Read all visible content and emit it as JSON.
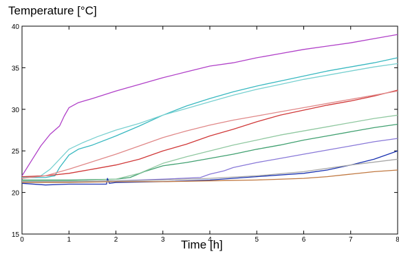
{
  "chart_data": {
    "type": "line",
    "ylabel": "Temperature [°C]",
    "xlabel": "Time [h]",
    "xlim": [
      0,
      8
    ],
    "ylim": [
      15,
      40
    ],
    "xticks": [
      0,
      1,
      2,
      3,
      4,
      5,
      6,
      7,
      8
    ],
    "yticks": [
      15,
      20,
      25,
      30,
      35,
      40
    ],
    "grid": false,
    "legend": "none",
    "series": [
      {
        "color": "#b040c8",
        "x": [
          0,
          0.2,
          0.4,
          0.6,
          0.8,
          0.9,
          1.0,
          1.2,
          1.5,
          2,
          2.5,
          3,
          3.5,
          4,
          4.5,
          5,
          5.5,
          6,
          6.5,
          7,
          7.5,
          8
        ],
        "y": [
          22.0,
          23.8,
          25.6,
          27.0,
          28.0,
          29.2,
          30.2,
          30.8,
          31.3,
          32.2,
          33.0,
          33.8,
          34.5,
          35.2,
          35.6,
          36.2,
          36.7,
          37.2,
          37.6,
          38.0,
          38.5,
          39.0
        ]
      },
      {
        "color": "#38b8c0",
        "x": [
          0,
          0.5,
          0.7,
          0.8,
          1.0,
          1.2,
          1.5,
          2,
          2.5,
          3,
          3.5,
          4,
          4.5,
          5,
          5.5,
          6,
          6.5,
          7,
          7.5,
          8
        ],
        "y": [
          21.8,
          21.8,
          22.0,
          23.0,
          24.5,
          25.2,
          25.7,
          26.8,
          28.0,
          29.3,
          30.4,
          31.3,
          32.1,
          32.8,
          33.4,
          34.0,
          34.6,
          35.1,
          35.6,
          36.2
        ]
      },
      {
        "color": "#78d0d0",
        "x": [
          0,
          0.4,
          0.6,
          0.8,
          1.0,
          1.3,
          1.6,
          2,
          2.5,
          3,
          3.5,
          4,
          4.5,
          5,
          5.5,
          6,
          6.5,
          7,
          7.5,
          8
        ],
        "y": [
          21.8,
          22.0,
          22.8,
          24.0,
          25.2,
          26.0,
          26.7,
          27.5,
          28.3,
          29.3,
          30.1,
          30.9,
          31.7,
          32.4,
          33.0,
          33.6,
          34.1,
          34.6,
          35.1,
          35.5
        ]
      },
      {
        "color": "#d03838",
        "x": [
          0,
          0.5,
          1,
          1.5,
          2,
          2.5,
          3,
          3.5,
          4,
          4.5,
          5,
          5.5,
          6,
          6.5,
          7,
          7.5,
          8
        ],
        "y": [
          21.9,
          22.0,
          22.3,
          22.8,
          23.3,
          24.0,
          25.0,
          25.8,
          26.8,
          27.6,
          28.5,
          29.3,
          29.9,
          30.5,
          31.0,
          31.6,
          32.3
        ]
      },
      {
        "color": "#e08888",
        "x": [
          0,
          0.5,
          1,
          1.5,
          2,
          2.5,
          3,
          3.5,
          4,
          4.5,
          5,
          5.5,
          6,
          6.5,
          7,
          7.5,
          8
        ],
        "y": [
          21.7,
          22.0,
          22.8,
          23.7,
          24.6,
          25.6,
          26.6,
          27.4,
          28.1,
          28.7,
          29.2,
          29.7,
          30.2,
          30.7,
          31.2,
          31.7,
          32.2
        ]
      },
      {
        "color": "#40a070",
        "x": [
          0,
          1,
          2,
          2.3,
          2.6,
          3,
          3.5,
          4,
          4.5,
          5,
          5.5,
          6,
          6.5,
          7,
          7.5,
          8
        ],
        "y": [
          21.5,
          21.5,
          21.6,
          21.8,
          22.5,
          23.2,
          23.6,
          24.1,
          24.6,
          25.2,
          25.7,
          26.3,
          26.8,
          27.3,
          27.8,
          28.2
        ]
      },
      {
        "color": "#90c8a0",
        "x": [
          0,
          1,
          2,
          2.5,
          3,
          3.5,
          4,
          4.5,
          5,
          5.5,
          6,
          6.5,
          7,
          7.5,
          8
        ],
        "y": [
          21.4,
          21.4,
          21.6,
          22.3,
          23.5,
          24.3,
          25.0,
          25.7,
          26.3,
          26.9,
          27.4,
          27.9,
          28.4,
          28.9,
          29.3
        ]
      },
      {
        "color": "#8878d8",
        "x": [
          0,
          1,
          2,
          3,
          3.8,
          4.0,
          4.3,
          4.5,
          5,
          5.5,
          6,
          6.5,
          7,
          7.5,
          8
        ],
        "y": [
          21.3,
          21.3,
          21.4,
          21.6,
          21.8,
          22.2,
          22.6,
          23.0,
          23.6,
          24.1,
          24.6,
          25.1,
          25.6,
          26.1,
          26.5
        ]
      },
      {
        "color": "#1830b0",
        "x": [
          0,
          0.5,
          1,
          1.8,
          1.82,
          1.86,
          2,
          3,
          4,
          5,
          6,
          6.5,
          7,
          7.5,
          8
        ],
        "y": [
          21.1,
          20.9,
          21.0,
          21.0,
          21.7,
          21.1,
          21.2,
          21.3,
          21.5,
          21.9,
          22.3,
          22.7,
          23.3,
          24.0,
          25.0
        ]
      },
      {
        "color": "#c07840",
        "x": [
          0,
          1,
          2,
          3,
          4,
          5,
          6,
          6.5,
          7,
          7.5,
          8
        ],
        "y": [
          21.2,
          21.2,
          21.3,
          21.3,
          21.4,
          21.5,
          21.7,
          21.9,
          22.2,
          22.5,
          22.7
        ]
      },
      {
        "color": "#a8a8a8",
        "x": [
          0,
          1,
          2,
          3,
          4,
          5,
          6,
          7,
          8
        ],
        "y": [
          21.3,
          21.3,
          21.4,
          21.5,
          21.7,
          22.0,
          22.5,
          23.3,
          24.0
        ]
      }
    ]
  }
}
